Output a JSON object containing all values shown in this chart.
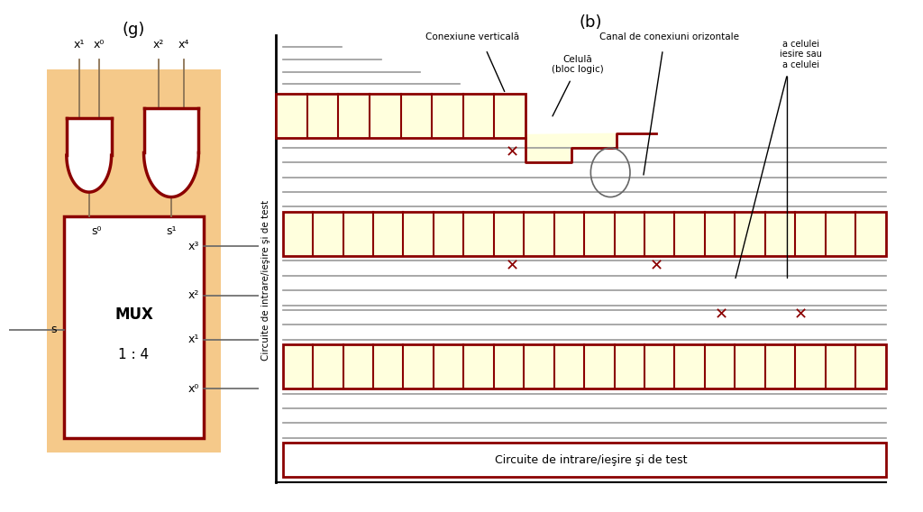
{
  "bg_color": "#ffffff",
  "orange_bg": "#f5c98a",
  "dark_red": "#8b0000",
  "yellow_cell": "#ffffdd",
  "gray_line": "#999999",
  "dark_gray": "#666666",
  "label_a": "(g)",
  "label_b": "(b)",
  "inputs_left": [
    "x³",
    "x²",
    "x¹",
    "x⁰"
  ],
  "inputs_top": [
    "x⁴",
    "x²",
    "x⁰",
    "x¹"
  ],
  "s1": "s¹",
  "s0": "s⁰",
  "s_out": "s",
  "mux_line1": "MUX",
  "mux_line2": "1 : 4",
  "ann_vert": "Conexiune verticală",
  "ann_horiz": "Canal de conexiuni orizontale",
  "ann_cell": "Celulă\n(bloc logic)",
  "ann_right": "a celulei\niesire sau\na celulei",
  "vert_label": "Circuite de intrare/ieşire şi de test",
  "bottom_label": "Circuite de intrare/ieşire şi de test"
}
